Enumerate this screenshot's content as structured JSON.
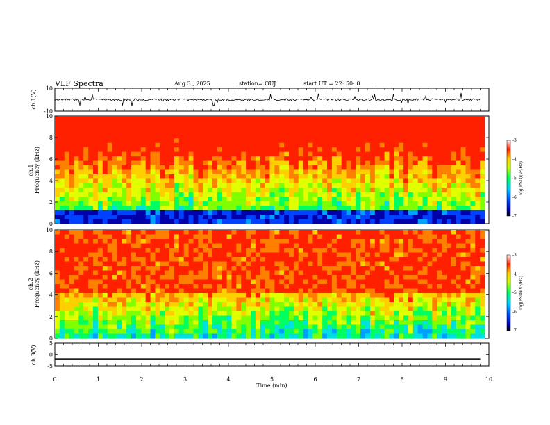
{
  "header": {
    "title": "VLF Spectra",
    "date": "Aug.3  , 2025",
    "station": "station= OUJ",
    "start": "start  UT  =   22: 50: 0"
  },
  "chart_data": [
    {
      "type": "line",
      "ylabel": "ch.1(V)",
      "ylim": [
        -10,
        10
      ],
      "yticks": [
        "10",
        "-10"
      ],
      "description_values": {
        "baseline": 0
      }
    },
    {
      "type": "heatmap",
      "ylabel": "ch.1\nFrequency (kHz)",
      "ylabel_top": "ch.1",
      "ylabel_bottom": "Frequency  (kHz)",
      "ylim": [
        0,
        10
      ],
      "yticks": [
        "0",
        "2",
        "4",
        "6",
        "8",
        "10"
      ],
      "colorbar": {
        "label": "log(PSD)(V²/Hz)",
        "range": [
          -7,
          -3
        ],
        "ticks": [
          "-3",
          "-4",
          "-5",
          "-6",
          "-7"
        ]
      }
    },
    {
      "type": "heatmap",
      "ylabel_top": "ch.2",
      "ylabel_bottom": "Frequency  (kHz)",
      "ylim": [
        0,
        10
      ],
      "yticks": [
        "0",
        "2",
        "4",
        "6",
        "8",
        "10"
      ],
      "colorbar": {
        "label": "log(PSD)(V²/Hz)",
        "range": [
          -7,
          -3
        ],
        "ticks": [
          "-3",
          "-4",
          "-5",
          "-6",
          "-7"
        ]
      }
    },
    {
      "type": "line",
      "ylabel": "ch.3(V)",
      "ylim": [
        -5,
        5
      ],
      "yticks": [
        "5",
        "0",
        "-5"
      ],
      "x": [
        0,
        9.8
      ],
      "y": [
        -2,
        -2
      ]
    }
  ],
  "xaxis": {
    "label": "Time  (min)",
    "xlim": [
      0,
      10
    ],
    "ticks": [
      "0",
      "1",
      "2",
      "3",
      "4",
      "5",
      "6",
      "7",
      "8",
      "9",
      "10"
    ]
  },
  "colors": {
    "line": "#000000"
  }
}
